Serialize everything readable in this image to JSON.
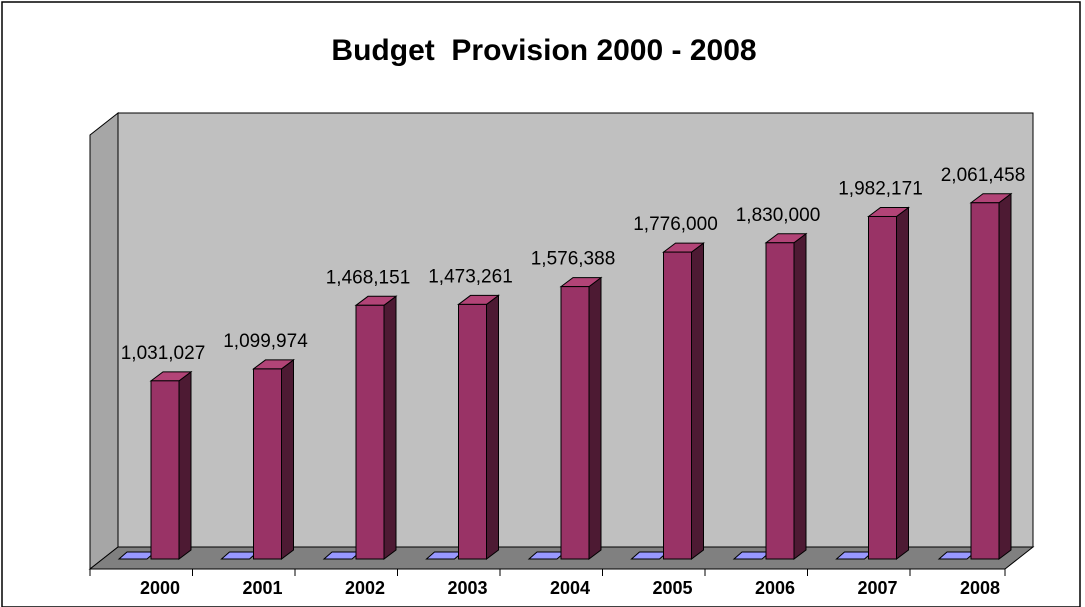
{
  "chart_data": {
    "type": "bar",
    "title": "Budget  Provision 2000 - 2008",
    "xlabel": "",
    "ylabel": "",
    "categories": [
      "2000",
      "2001",
      "2002",
      "2003",
      "2004",
      "2005",
      "2006",
      "2007",
      "2008"
    ],
    "values": [
      1031027,
      1099974,
      1468151,
      1473261,
      1576388,
      1776000,
      1830000,
      1982171,
      2061458
    ],
    "data_labels": [
      "1,031,027",
      "1,099,974",
      "1,468,151",
      "1,473,261",
      "1,576,388",
      "1,776,000",
      "1,830,000",
      "1,982,171",
      "2,061,458"
    ],
    "ylim": [
      0,
      2300000
    ],
    "grid": false,
    "legend": "none",
    "style": "3d-column",
    "colors": {
      "bar_front": "#993366",
      "bar_top": "#b24477",
      "bar_side": "#4d1a33",
      "plot_wall": "#c0c0c0",
      "plot_side_wall": "#a6a6a6",
      "plot_floor": "#808080",
      "floor_marker": "#9999ff",
      "frame_border": "#000000"
    }
  }
}
